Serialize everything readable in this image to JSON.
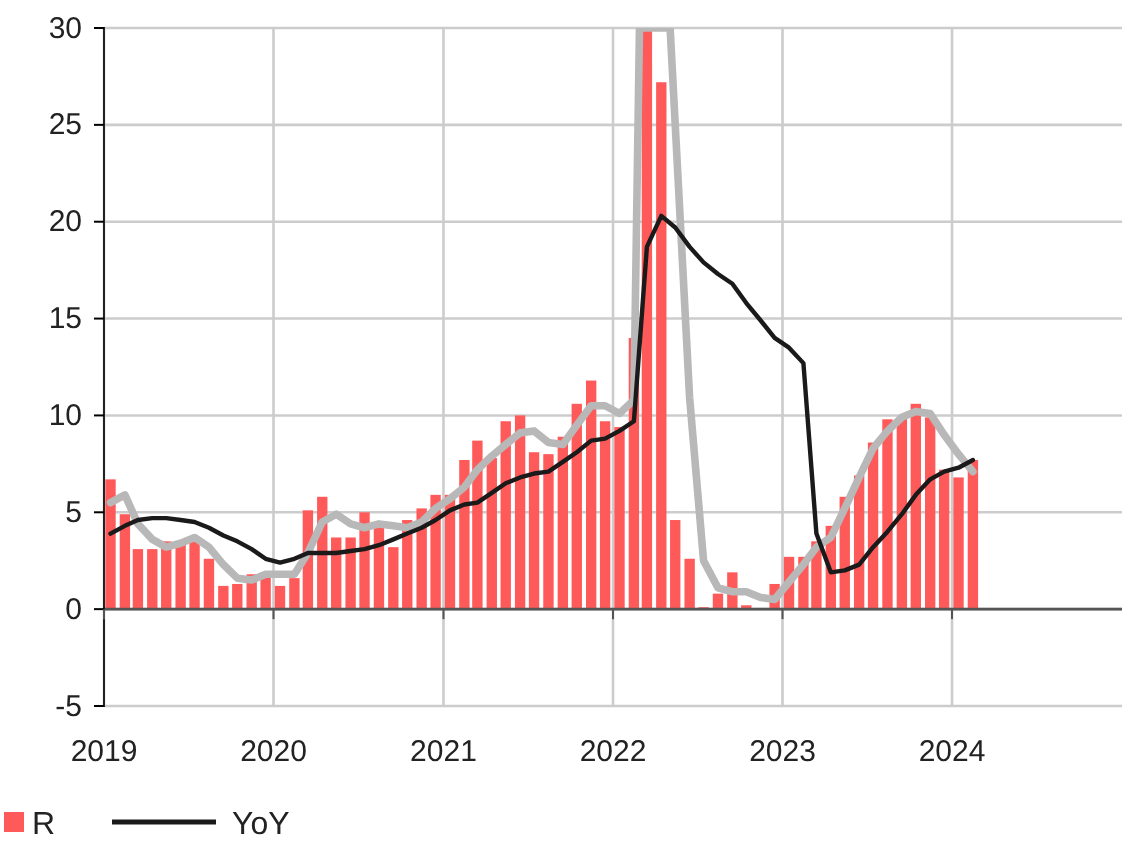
{
  "chart_data": {
    "type": "bar",
    "x": [
      "2019-01-15",
      "2019-02-15",
      "2019-03-15",
      "2019-04-15",
      "2019-05-15",
      "2019-06-15",
      "2019-07-15",
      "2019-08-15",
      "2019-09-15",
      "2019-10-15",
      "2019-11-15",
      "2019-12-15",
      "2020-01-15",
      "2020-02-15",
      "2020-03-15",
      "2020-04-15",
      "2020-05-15",
      "2020-06-15",
      "2020-07-15",
      "2020-08-15",
      "2020-09-15",
      "2020-10-15",
      "2020-11-15",
      "2020-12-15",
      "2021-01-15",
      "2021-02-15",
      "2021-03-15",
      "2021-04-15",
      "2021-05-15",
      "2021-06-15",
      "2021-07-15",
      "2021-08-15",
      "2021-09-15",
      "2021-10-15",
      "2021-11-15",
      "2021-12-15",
      "2022-01-15",
      "2022-02-15",
      "2022-03-15",
      "2022-04-15",
      "2022-05-15",
      "2022-06-15",
      "2022-07-15",
      "2022-08-15",
      "2022-09-15",
      "2022-10-15",
      "2022-11-15",
      "2022-12-15",
      "2023-01-15",
      "2023-02-15",
      "2023-03-15",
      "2023-04-15",
      "2023-05-15",
      "2023-06-15",
      "2023-07-15",
      "2023-08-15",
      "2023-09-15",
      "2023-10-15",
      "2023-11-15",
      "2023-12-15",
      "2024-01-15",
      "2024-02-15"
    ],
    "series": [
      {
        "name": "R",
        "color": "#ff5a5a",
        "values": [
          6.7,
          4.9,
          3.1,
          3.1,
          3.5,
          3.5,
          3.7,
          2.6,
          1.2,
          1.3,
          1.8,
          1.9,
          1.2,
          1.6,
          5.1,
          5.8,
          3.7,
          3.7,
          5.0,
          4.2,
          3.2,
          4.6,
          5.2,
          5.9,
          5.9,
          7.7,
          8.7,
          7.8,
          9.7,
          10.0,
          8.1,
          8.0,
          8.9,
          10.6,
          11.8,
          9.7,
          9.4,
          14.0,
          30,
          27.2,
          4.6,
          2.6,
          0.1,
          0.8,
          1.9,
          0.2,
          0,
          1.3,
          2.7,
          2.7,
          3.5,
          4.3,
          5.8,
          6.9,
          8.6,
          9.8,
          9.9,
          10.6,
          9.9,
          7.2,
          6.8,
          7.7
        ]
      },
      {
        "type": "line",
        "color": "#b8b8b8",
        "x": [
          "2019-01-15",
          "2019-02-15",
          "2019-03-15",
          "2019-04-15",
          "2019-05-15",
          "2019-06-15",
          "2019-07-15",
          "2019-08-15",
          "2019-09-15",
          "2019-10-15",
          "2019-11-15",
          "2019-12-15",
          "2020-01-15",
          "2020-02-15",
          "2020-03-15",
          "2020-04-15",
          "2020-05-15",
          "2020-06-15",
          "2020-07-15",
          "2020-08-15",
          "2020-09-15",
          "2020-10-15",
          "2020-11-15",
          "2020-12-15",
          "2021-01-15",
          "2021-02-15",
          "2021-03-15",
          "2021-04-15",
          "2021-05-15",
          "2021-06-15",
          "2021-07-15",
          "2021-08-15",
          "2021-09-15",
          "2021-10-15",
          "2021-11-15",
          "2021-12-15",
          "2022-01-15",
          "2022-02-15",
          "2022-02-27",
          "2022-05-04",
          "2022-06-15",
          "2022-07-15",
          "2022-08-15",
          "2022-09-15",
          "2022-10-15",
          "2022-11-15",
          "2022-12-15",
          "2023-01-15",
          "2023-02-15",
          "2023-03-15",
          "2023-04-15",
          "2023-05-15",
          "2023-06-15",
          "2023-07-15",
          "2023-08-15",
          "2023-09-15",
          "2023-10-15",
          "2023-11-15",
          "2023-12-15",
          "2024-01-15",
          "2024-02-15"
        ],
        "values": [
          5.5,
          5.9,
          4.4,
          3.6,
          3.2,
          3.4,
          3.7,
          3.2,
          2.3,
          1.6,
          1.5,
          1.8,
          1.8,
          1.8,
          2.9,
          4.5,
          4.9,
          4.4,
          4.2,
          4.4,
          4.3,
          4.2,
          4.5,
          5.2,
          5.7,
          6.3,
          7.2,
          7.9,
          8.5,
          9.1,
          9.2,
          8.6,
          8.5,
          9.5,
          10.5,
          10.5,
          10.1,
          10.8,
          30,
          30,
          10.9,
          2.5,
          1.1,
          0.9,
          0.9,
          0.6,
          0.5,
          1.4,
          2.3,
          3.2,
          3.7,
          5.2,
          6.8,
          8.3,
          9.2,
          9.9,
          10.2,
          10.1,
          9.0,
          8.0,
          7.1
        ]
      },
      {
        "name": "YoY",
        "type": "line",
        "color": "#1a1a1a",
        "values": [
          3.9,
          4.3,
          4.6,
          4.7,
          4.7,
          4.6,
          4.5,
          4.2,
          3.8,
          3.5,
          3.1,
          2.6,
          2.4,
          2.6,
          2.9,
          2.9,
          2.9,
          3.0,
          3.1,
          3.3,
          3.6,
          3.9,
          4.2,
          4.6,
          5.1,
          5.4,
          5.5,
          6.0,
          6.5,
          6.8,
          7.0,
          7.1,
          7.6,
          8.1,
          8.7,
          8.8,
          9.2,
          9.7,
          18.7,
          20.3,
          19.7,
          18.7,
          17.9,
          17.3,
          16.8,
          15.8,
          14.9,
          14.0,
          13.5,
          12.7,
          3.9,
          1.9,
          2.0,
          2.3,
          3.2,
          4.0,
          4.9,
          5.9,
          6.7,
          7.1,
          7.3,
          7.7
        ]
      }
    ],
    "xlim": [
      "2019-01-01",
      "2025-01-01"
    ],
    "xticks": [
      {
        "value": "2019-01-01",
        "label": "2019"
      },
      {
        "value": "2020-01-01",
        "label": "2020"
      },
      {
        "value": "2021-01-01",
        "label": "2021"
      },
      {
        "value": "2022-01-01",
        "label": "2022"
      },
      {
        "value": "2023-01-01",
        "label": "2023"
      },
      {
        "value": "2024-01-01",
        "label": "2024"
      }
    ],
    "ylim": [
      -5,
      30
    ],
    "yticks": [
      -5,
      0,
      5,
      10,
      15,
      20,
      25,
      30
    ],
    "grid": true,
    "legend": "bottom left"
  }
}
